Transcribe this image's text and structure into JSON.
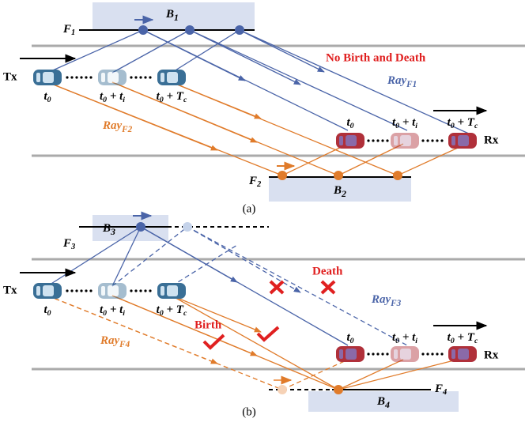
{
  "panel_a": {
    "caption": "(a)",
    "box_top": [
      {
        "base": "B",
        "sub": "1"
      }
    ],
    "surface_top": [
      {
        "base": "F",
        "sub": "1"
      }
    ],
    "note": "No Birth and Death",
    "ray_blue": [
      {
        "base": "Ray",
        "sub": "F1"
      }
    ],
    "tx": "Tx",
    "tx_times": [
      [
        {
          "base": "t",
          "sub": "0"
        }
      ],
      [
        {
          "base": "t",
          "sub": "0"
        },
        {
          "base": " + t",
          "sub": "i"
        }
      ],
      [
        {
          "base": "t",
          "sub": "0"
        },
        {
          "base": " + T",
          "sub": "c"
        }
      ]
    ],
    "ray_orange": [
      {
        "base": "Ray",
        "sub": "F2"
      }
    ],
    "rx_times": [
      [
        {
          "base": "t",
          "sub": "0"
        }
      ],
      [
        {
          "base": "t",
          "sub": "0"
        },
        {
          "base": " + t",
          "sub": "i"
        }
      ],
      [
        {
          "base": "t",
          "sub": "0"
        },
        {
          "base": " + T",
          "sub": "c"
        }
      ]
    ],
    "rx": "Rx",
    "surface_bottom": [
      {
        "base": "F",
        "sub": "2"
      }
    ],
    "box_bottom": [
      {
        "base": "B",
        "sub": "2"
      }
    ]
  },
  "panel_b": {
    "caption": "(b)",
    "box_top": [
      {
        "base": "B",
        "sub": "3"
      }
    ],
    "surface_top": [
      {
        "base": "F",
        "sub": "3"
      }
    ],
    "death": "Death",
    "ray_blue": [
      {
        "base": "Ray",
        "sub": "F3"
      }
    ],
    "tx": "Tx",
    "tx_times": [
      [
        {
          "base": "t",
          "sub": "0"
        }
      ],
      [
        {
          "base": "t",
          "sub": "0"
        },
        {
          "base": " + t",
          "sub": "i"
        }
      ],
      [
        {
          "base": "t",
          "sub": "0"
        },
        {
          "base": " + T",
          "sub": "c"
        }
      ]
    ],
    "birth": "Birth",
    "ray_orange": [
      {
        "base": "Ray",
        "sub": "F4"
      }
    ],
    "rx_times": [
      [
        {
          "base": "t",
          "sub": "0"
        }
      ],
      [
        {
          "base": "t",
          "sub": "0"
        },
        {
          "base": " + t",
          "sub": "i"
        }
      ],
      [
        {
          "base": "t",
          "sub": "0"
        },
        {
          "base": " + T",
          "sub": "c"
        }
      ]
    ],
    "rx": "Rx",
    "surface_bottom": [
      {
        "base": "F",
        "sub": "4"
      }
    ],
    "box_bottom": [
      {
        "base": "B",
        "sub": "4"
      }
    ]
  }
}
